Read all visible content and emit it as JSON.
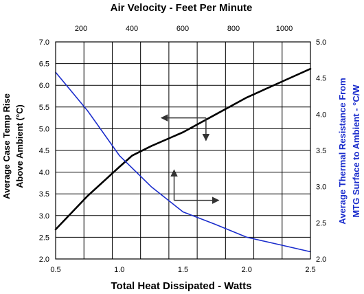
{
  "chart_data": {
    "type": "line",
    "title": "Air Velocity - Feet Per Minute",
    "xlabel": "Total Heat Dissipated - Watts",
    "ylabel_left_line1": "Average Case Temp Rise",
    "ylabel_left_line2": "Above Ambient (°C)",
    "ylabel_right_line1": "Average Thermal Resistance From",
    "ylabel_right_line2": "MTG Surface to Ambient - °C/W",
    "xlim": [
      0.5,
      2.5
    ],
    "ylim_left": [
      2.0,
      7.0
    ],
    "ylim_right": [
      2.0,
      5.0
    ],
    "grid": true,
    "x_ticks": [
      0.5,
      1.0,
      1.5,
      2.0,
      2.5
    ],
    "x_tick_labels": [
      "0.5",
      "1.0",
      "1.5",
      "2.0",
      "2.5"
    ],
    "top_ticks": [
      200,
      400,
      600,
      800,
      1000
    ],
    "top_tick_labels": [
      "200",
      "400",
      "600",
      "800",
      "1000"
    ],
    "y_left_ticks": [
      2.0,
      2.5,
      3.0,
      3.5,
      4.0,
      4.5,
      5.0,
      5.5,
      6.0,
      6.5,
      7.0
    ],
    "y_left_tick_labels": [
      "2.0",
      "2.5",
      "3.0",
      "3.5",
      "4.0",
      "4.5",
      "5.0",
      "5.5",
      "6.0",
      "6.5",
      "7.0"
    ],
    "y_right_ticks": [
      2.0,
      2.5,
      3.0,
      3.5,
      4.0,
      4.5,
      5.0
    ],
    "y_right_tick_labels": [
      "2.0",
      "2.5",
      "3.0",
      "3.5",
      "4.0",
      "4.5",
      "5.0"
    ],
    "series": [
      {
        "axis": "left",
        "color": "#000000",
        "points": [
          [
            0.5,
            2.68
          ],
          [
            0.75,
            3.45
          ],
          [
            1.0,
            4.12
          ],
          [
            1.1,
            4.38
          ],
          [
            1.25,
            4.6
          ],
          [
            1.5,
            4.92
          ],
          [
            1.75,
            5.32
          ],
          [
            2.0,
            5.72
          ],
          [
            2.25,
            6.05
          ],
          [
            2.5,
            6.38
          ]
        ]
      },
      {
        "axis": "right",
        "color": "#1a2ccc",
        "points": [
          [
            0.5,
            4.58
          ],
          [
            0.75,
            4.05
          ],
          [
            1.0,
            3.43
          ],
          [
            1.25,
            3.0
          ],
          [
            1.5,
            2.65
          ],
          [
            1.75,
            2.48
          ],
          [
            2.0,
            2.3
          ],
          [
            2.25,
            2.2
          ],
          [
            2.5,
            2.1
          ]
        ]
      }
    ],
    "annotations": [
      {
        "type": "arrow-left",
        "from": [
          1.68,
          5.25
        ],
        "to": [
          1.33,
          5.25
        ],
        "axis": "left"
      },
      {
        "type": "arrow-down",
        "from": [
          1.68,
          5.25
        ],
        "to": [
          1.68,
          4.73
        ],
        "axis": "left"
      },
      {
        "type": "arrow-up",
        "from": [
          1.43,
          3.35
        ],
        "to": [
          1.43,
          4.05
        ],
        "axis": "left"
      },
      {
        "type": "arrow-right",
        "from": [
          1.43,
          3.35
        ],
        "to": [
          1.78,
          3.35
        ],
        "axis": "left"
      }
    ]
  }
}
